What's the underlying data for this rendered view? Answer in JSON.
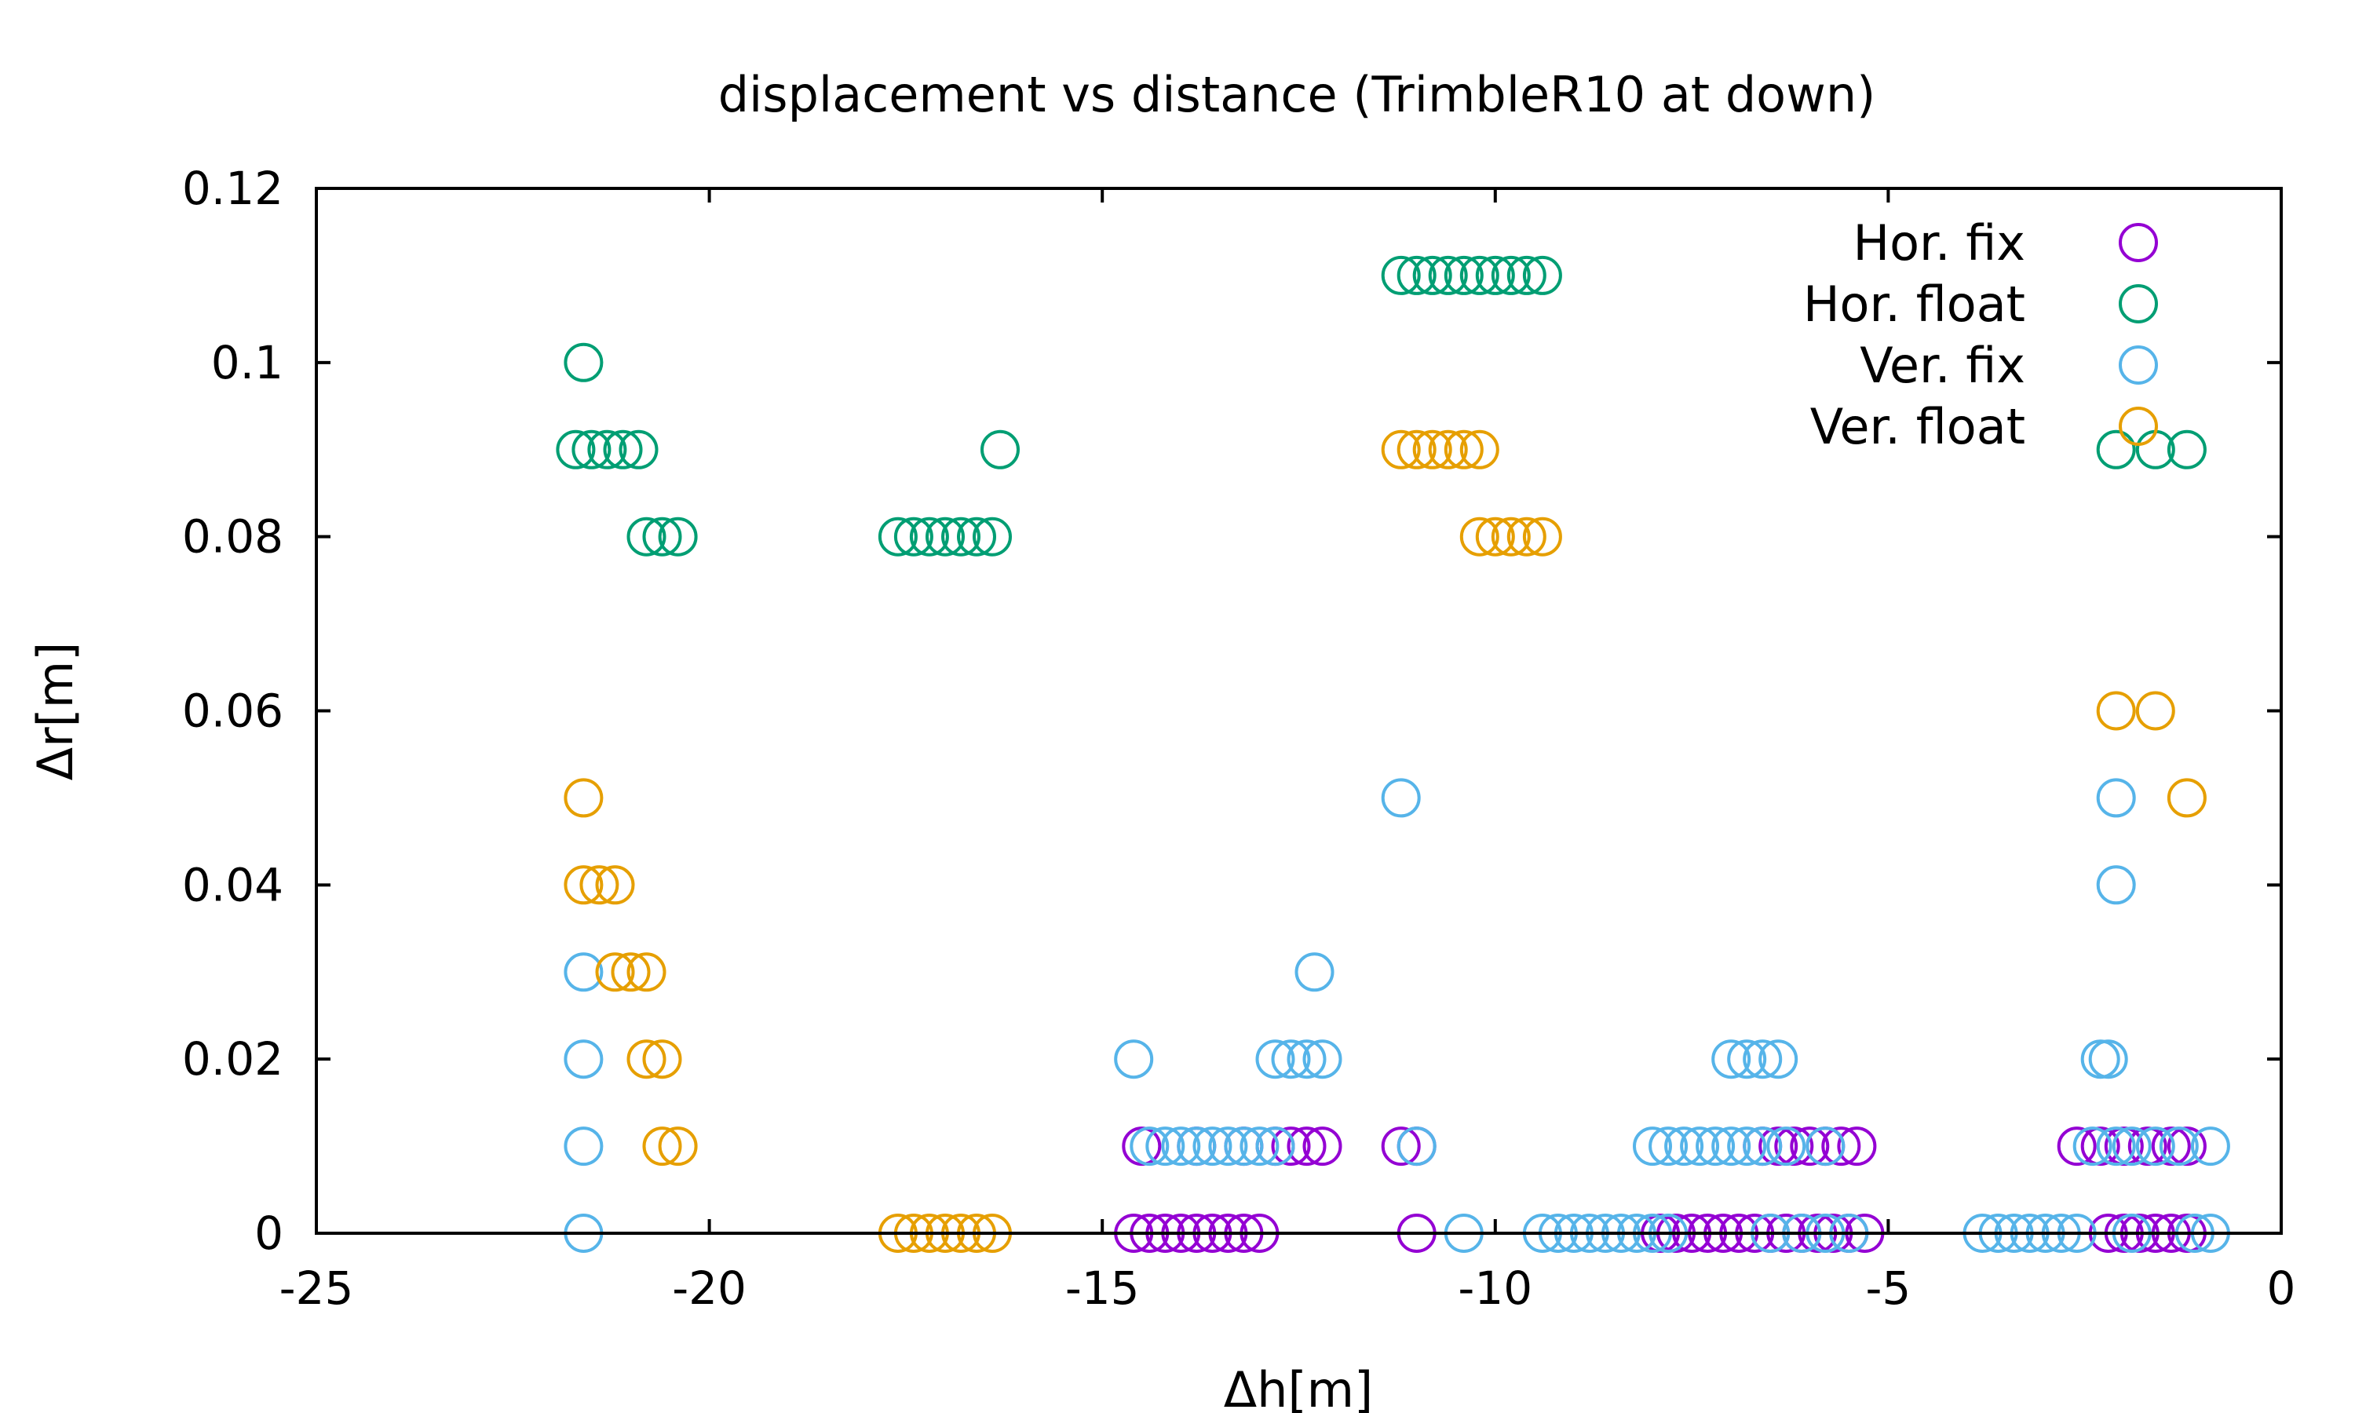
{
  "chart_data": {
    "type": "scatter",
    "title": "displacement vs distance (TrimbleR10 at down)",
    "xlabel": "Δh[m]",
    "ylabel": "Δr[m]",
    "xlim": [
      -25,
      0
    ],
    "ylim": [
      0,
      0.12
    ],
    "x_ticks": [
      -25,
      -20,
      -15,
      -10,
      -5,
      0
    ],
    "y_ticks": [
      0,
      0.02,
      0.04,
      0.06,
      0.08,
      0.1,
      0.12
    ],
    "x_tick_labels": [
      "-25",
      "-20",
      "-15",
      "-10",
      "-5",
      "0"
    ],
    "y_tick_labels": [
      "0",
      "0.02",
      "0.04",
      "0.06",
      "0.08",
      "0.1",
      "0.12"
    ],
    "grid": false,
    "legend_position": "top-right",
    "marker": "open-circle",
    "series": [
      {
        "name": "Hor. fix",
        "color": "#9400d3",
        "points": [
          [
            -14.6,
            0
          ],
          [
            -14.4,
            0
          ],
          [
            -14.2,
            0
          ],
          [
            -14.0,
            0
          ],
          [
            -13.8,
            0
          ],
          [
            -13.6,
            0
          ],
          [
            -13.4,
            0
          ],
          [
            -13.2,
            0
          ],
          [
            -13.0,
            0
          ],
          [
            -14.5,
            0.01
          ],
          [
            -13.8,
            0.01
          ],
          [
            -13.2,
            0.01
          ],
          [
            -12.8,
            0.01
          ],
          [
            -12.6,
            0.01
          ],
          [
            -12.4,
            0.01
          ],
          [
            -12.2,
            0.01
          ],
          [
            -11.0,
            0
          ],
          [
            -11.2,
            0.01
          ],
          [
            -11.0,
            0.01
          ],
          [
            -7.9,
            0
          ],
          [
            -7.7,
            0
          ],
          [
            -7.5,
            0
          ],
          [
            -7.3,
            0
          ],
          [
            -7.1,
            0
          ],
          [
            -6.9,
            0
          ],
          [
            -6.7,
            0
          ],
          [
            -6.5,
            0
          ],
          [
            -6.3,
            0
          ],
          [
            -6.1,
            0
          ],
          [
            -5.9,
            0
          ],
          [
            -5.7,
            0
          ],
          [
            -5.5,
            0
          ],
          [
            -5.3,
            0
          ],
          [
            -6.6,
            0.01
          ],
          [
            -6.4,
            0.01
          ],
          [
            -6.2,
            0.01
          ],
          [
            -6.0,
            0.01
          ],
          [
            -5.8,
            0.01
          ],
          [
            -5.6,
            0.01
          ],
          [
            -5.4,
            0.01
          ],
          [
            -2.2,
            0
          ],
          [
            -2.0,
            0
          ],
          [
            -1.8,
            0
          ],
          [
            -1.6,
            0
          ],
          [
            -1.4,
            0
          ],
          [
            -1.2,
            0
          ],
          [
            -2.6,
            0.01
          ],
          [
            -2.3,
            0.01
          ],
          [
            -2.0,
            0.01
          ],
          [
            -1.7,
            0.01
          ],
          [
            -1.4,
            0.01
          ],
          [
            -1.2,
            0.01
          ]
        ]
      },
      {
        "name": "Hor. float",
        "color": "#009e73",
        "points": [
          [
            -21.6,
            0.1
          ],
          [
            -21.7,
            0.09
          ],
          [
            -21.5,
            0.09
          ],
          [
            -21.3,
            0.09
          ],
          [
            -21.1,
            0.09
          ],
          [
            -20.9,
            0.09
          ],
          [
            -20.8,
            0.08
          ],
          [
            -20.6,
            0.08
          ],
          [
            -20.4,
            0.08
          ],
          [
            -16.3,
            0.09
          ],
          [
            -17.6,
            0.08
          ],
          [
            -17.4,
            0.08
          ],
          [
            -17.2,
            0.08
          ],
          [
            -17.0,
            0.08
          ],
          [
            -16.8,
            0.08
          ],
          [
            -16.6,
            0.08
          ],
          [
            -16.4,
            0.08
          ],
          [
            -11.2,
            0.11
          ],
          [
            -11.0,
            0.11
          ],
          [
            -10.8,
            0.11
          ],
          [
            -10.6,
            0.11
          ],
          [
            -10.4,
            0.11
          ],
          [
            -10.2,
            0.11
          ],
          [
            -10.0,
            0.11
          ],
          [
            -9.8,
            0.11
          ],
          [
            -9.6,
            0.11
          ],
          [
            -9.4,
            0.11
          ],
          [
            -2.1,
            0.09
          ],
          [
            -1.6,
            0.09
          ],
          [
            -1.2,
            0.09
          ]
        ]
      },
      {
        "name": "Ver. fix",
        "color": "#56b4e9",
        "points": [
          [
            -21.6,
            0.03
          ],
          [
            -21.6,
            0.02
          ],
          [
            -21.6,
            0.01
          ],
          [
            -21.6,
            0
          ],
          [
            -14.6,
            0.02
          ],
          [
            -14.4,
            0.01
          ],
          [
            -14.2,
            0.01
          ],
          [
            -14.0,
            0.01
          ],
          [
            -13.8,
            0.01
          ],
          [
            -13.6,
            0.01
          ],
          [
            -13.4,
            0.01
          ],
          [
            -13.2,
            0.01
          ],
          [
            -13.0,
            0.01
          ],
          [
            -12.8,
            0.01
          ],
          [
            -12.3,
            0.03
          ],
          [
            -12.8,
            0.02
          ],
          [
            -12.6,
            0.02
          ],
          [
            -12.4,
            0.02
          ],
          [
            -12.2,
            0.02
          ],
          [
            -11.2,
            0.05
          ],
          [
            -11.0,
            0.01
          ],
          [
            -10.4,
            0
          ],
          [
            -9.4,
            0
          ],
          [
            -9.2,
            0
          ],
          [
            -9.0,
            0
          ],
          [
            -8.8,
            0
          ],
          [
            -8.6,
            0
          ],
          [
            -8.4,
            0
          ],
          [
            -8.2,
            0
          ],
          [
            -8.0,
            0
          ],
          [
            -7.8,
            0
          ],
          [
            -6.5,
            0
          ],
          [
            -6.1,
            0
          ],
          [
            -5.8,
            0
          ],
          [
            -5.5,
            0
          ],
          [
            -8.0,
            0.01
          ],
          [
            -7.8,
            0.01
          ],
          [
            -7.6,
            0.01
          ],
          [
            -7.4,
            0.01
          ],
          [
            -7.2,
            0.01
          ],
          [
            -7.0,
            0.01
          ],
          [
            -6.8,
            0.01
          ],
          [
            -6.6,
            0.01
          ],
          [
            -6.3,
            0.01
          ],
          [
            -5.8,
            0.01
          ],
          [
            -7.0,
            0.02
          ],
          [
            -6.8,
            0.02
          ],
          [
            -6.6,
            0.02
          ],
          [
            -6.4,
            0.02
          ],
          [
            -2.1,
            0.05
          ],
          [
            -2.1,
            0.04
          ],
          [
            -2.3,
            0.02
          ],
          [
            -2.2,
            0.02
          ],
          [
            -3.8,
            0
          ],
          [
            -3.6,
            0
          ],
          [
            -3.4,
            0
          ],
          [
            -3.2,
            0
          ],
          [
            -3.0,
            0
          ],
          [
            -2.8,
            0
          ],
          [
            -2.6,
            0
          ],
          [
            -1.9,
            0
          ],
          [
            -1.1,
            0
          ],
          [
            -0.9,
            0
          ],
          [
            -2.4,
            0.01
          ],
          [
            -2.1,
            0.01
          ],
          [
            -1.9,
            0.01
          ],
          [
            -1.6,
            0.01
          ],
          [
            -1.3,
            0.01
          ],
          [
            -0.9,
            0.01
          ]
        ]
      },
      {
        "name": "Ver. float",
        "color": "#e69f00",
        "points": [
          [
            -21.6,
            0.05
          ],
          [
            -21.6,
            0.04
          ],
          [
            -21.4,
            0.04
          ],
          [
            -21.2,
            0.04
          ],
          [
            -21.2,
            0.03
          ],
          [
            -21.0,
            0.03
          ],
          [
            -20.8,
            0.03
          ],
          [
            -20.8,
            0.02
          ],
          [
            -20.6,
            0.02
          ],
          [
            -20.6,
            0.01
          ],
          [
            -20.4,
            0.01
          ],
          [
            -17.6,
            0
          ],
          [
            -17.4,
            0
          ],
          [
            -17.2,
            0
          ],
          [
            -17.0,
            0
          ],
          [
            -16.8,
            0
          ],
          [
            -16.6,
            0
          ],
          [
            -16.4,
            0
          ],
          [
            -11.2,
            0.09
          ],
          [
            -11.0,
            0.09
          ],
          [
            -10.8,
            0.09
          ],
          [
            -10.6,
            0.09
          ],
          [
            -10.4,
            0.09
          ],
          [
            -10.2,
            0.09
          ],
          [
            -10.2,
            0.08
          ],
          [
            -10.0,
            0.08
          ],
          [
            -9.8,
            0.08
          ],
          [
            -9.6,
            0.08
          ],
          [
            -9.4,
            0.08
          ],
          [
            -2.1,
            0.06
          ],
          [
            -1.6,
            0.06
          ],
          [
            -1.2,
            0.05
          ]
        ]
      }
    ]
  }
}
